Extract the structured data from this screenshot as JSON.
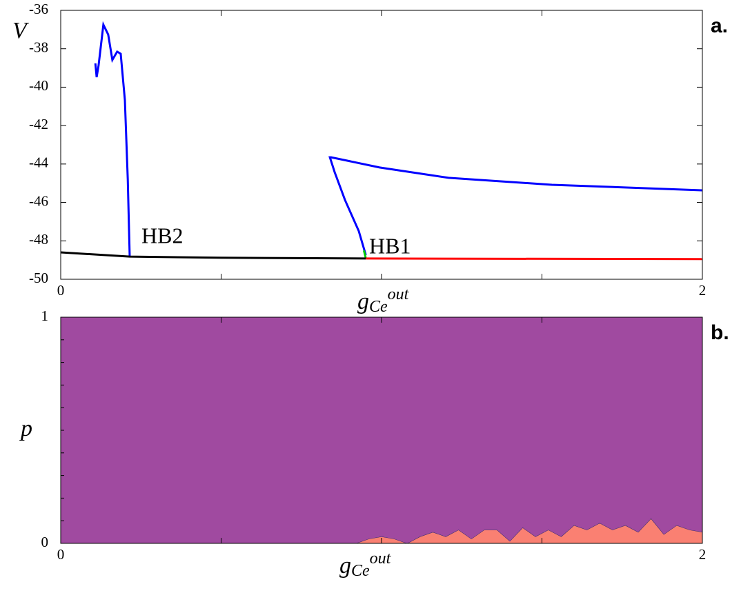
{
  "chart_data": [
    {
      "type": "line",
      "panel": "a.",
      "y_label": "V",
      "x_label": {
        "base": "g",
        "sub": "Ce",
        "sup": "out"
      },
      "xlim": [
        0,
        2
      ],
      "xticks": [
        0,
        2
      ],
      "xminorticks": [
        0.5,
        1,
        1.5
      ],
      "ylim": [
        -50,
        -36
      ],
      "yticks": [
        -50,
        -48,
        -46,
        -44,
        -42,
        -40,
        -38,
        -36
      ],
      "annotations": [
        "HB2",
        "HB1"
      ],
      "series": [
        {
          "color": "#0000ff",
          "x": [
            0.108,
            0.112,
            0.118,
            0.133,
            0.148,
            0.161,
            0.176,
            0.187,
            0.2,
            0.209,
            0.215,
            0.215
          ],
          "values": [
            -38.76,
            -39.48,
            -38.87,
            -36.75,
            -37.26,
            -38.58,
            -38.15,
            -38.26,
            -40.67,
            -44.79,
            -48.81,
            -48.8
          ]
        },
        {
          "color": "#0000ff",
          "x": [
            0.951,
            0.929,
            0.886,
            0.854,
            0.839,
            0.843,
            0.994,
            1.209,
            1.531,
            2.0
          ],
          "values": [
            -48.74,
            -47.49,
            -45.87,
            -44.43,
            -43.65,
            -43.65,
            -44.18,
            -44.72,
            -45.08,
            -45.37
          ]
        },
        {
          "color": "#00cc00",
          "x": [
            0.945,
            0.951
          ],
          "values": [
            -48.5,
            -48.9
          ]
        },
        {
          "color": "#000000",
          "x": [
            0,
            0.215,
            0.5,
            0.951
          ],
          "values": [
            -48.6,
            -48.82,
            -48.88,
            -48.92
          ]
        },
        {
          "color": "#ff0000",
          "x": [
            0.951,
            2.0
          ],
          "values": [
            -48.92,
            -48.95
          ]
        }
      ]
    },
    {
      "type": "area",
      "panel": "b.",
      "y_label": "p",
      "x_label": {
        "base": "g",
        "sub": "Ce",
        "sup": "out"
      },
      "xlim": [
        0,
        2
      ],
      "xticks": [
        0,
        2
      ],
      "xminorticks": [
        0.5,
        1,
        1.5
      ],
      "ylim": [
        0,
        1
      ],
      "yticks": [
        0,
        1
      ],
      "yminorticks": [
        0.1,
        0.2,
        0.3,
        0.4,
        0.5,
        0.6,
        0.7,
        0.8,
        0.9
      ],
      "x": [
        0,
        0.92,
        0.96,
        1.0,
        1.04,
        1.08,
        1.12,
        1.16,
        1.2,
        1.24,
        1.28,
        1.32,
        1.36,
        1.4,
        1.44,
        1.48,
        1.52,
        1.56,
        1.6,
        1.64,
        1.68,
        1.72,
        1.76,
        1.8,
        1.84,
        1.88,
        1.92,
        1.96,
        2.0
      ],
      "series": [
        {
          "color": "#fa8072",
          "values": [
            0,
            0,
            0.02,
            0.03,
            0.02,
            0,
            0.03,
            0.05,
            0.03,
            0.06,
            0.02,
            0.06,
            0.06,
            0.01,
            0.07,
            0.03,
            0.06,
            0.03,
            0.08,
            0.06,
            0.09,
            0.06,
            0.08,
            0.05,
            0.11,
            0.04,
            0.08,
            0.06,
            0.05
          ]
        },
        {
          "color": "#a04aa0",
          "values": [
            1,
            1,
            0.98,
            0.97,
            0.98,
            1,
            0.97,
            0.95,
            0.97,
            0.94,
            0.98,
            0.94,
            0.94,
            0.99,
            0.93,
            0.97,
            0.94,
            0.97,
            0.92,
            0.94,
            0.91,
            0.94,
            0.92,
            0.95,
            0.89,
            0.96,
            0.92,
            0.94,
            0.95
          ]
        }
      ]
    }
  ]
}
